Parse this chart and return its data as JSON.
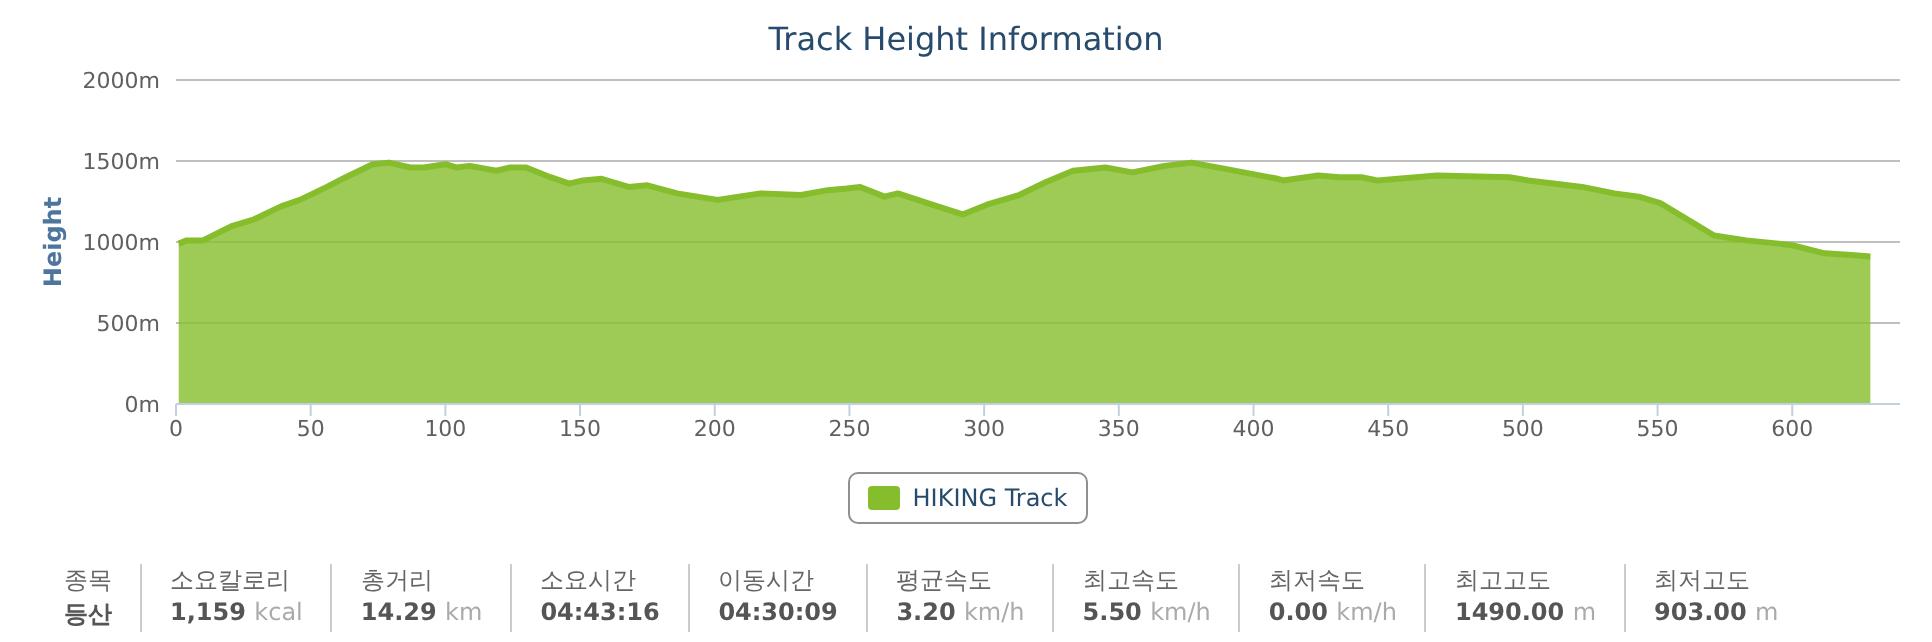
{
  "chart_data": {
    "type": "area",
    "title": "Track Height Information",
    "ylabel": "Height",
    "x": [
      1,
      4,
      10,
      21,
      29,
      39,
      46,
      56,
      63,
      73,
      79,
      87,
      92,
      100,
      104,
      109,
      119,
      124,
      130,
      139,
      146,
      151,
      158,
      168,
      175,
      186,
      201,
      217,
      232,
      242,
      249,
      254,
      263,
      268,
      279,
      292,
      301,
      313,
      323,
      333,
      345,
      355,
      367,
      377,
      390,
      409,
      411,
      424,
      432,
      440,
      446,
      468,
      495,
      502,
      522,
      534,
      543,
      551,
      571,
      583,
      595,
      600,
      612,
      622,
      629
    ],
    "series": [
      {
        "name": "HIKING Track",
        "color": "#86bd2c",
        "values": [
          990,
          1010,
          1010,
          1100,
          1140,
          1220,
          1260,
          1340,
          1400,
          1480,
          1490,
          1460,
          1460,
          1480,
          1460,
          1470,
          1440,
          1460,
          1460,
          1400,
          1360,
          1380,
          1390,
          1340,
          1350,
          1300,
          1260,
          1300,
          1290,
          1320,
          1330,
          1340,
          1280,
          1300,
          1240,
          1170,
          1230,
          1290,
          1370,
          1440,
          1460,
          1430,
          1470,
          1490,
          1450,
          1390,
          1380,
          1410,
          1400,
          1400,
          1380,
          1410,
          1400,
          1380,
          1340,
          1300,
          1280,
          1240,
          1040,
          1010,
          990,
          980,
          930,
          920,
          910
        ]
      }
    ],
    "xlim": [
      0,
      640
    ],
    "xticks": [
      0,
      50,
      100,
      150,
      200,
      250,
      300,
      350,
      400,
      450,
      500,
      550,
      600
    ],
    "ylim": [
      0,
      2000
    ],
    "yticks": [
      {
        "value": 0,
        "label": "0m"
      },
      {
        "value": 500,
        "label": "500m"
      },
      {
        "value": 1000,
        "label": "1000m"
      },
      {
        "value": 1500,
        "label": "1500m"
      },
      {
        "value": 2000,
        "label": "2000m"
      }
    ],
    "grid": "y",
    "legend": "bottom",
    "marker": "none",
    "annotations": [
      "종목",
      "등산",
      "소요칼로리",
      "1,159 kcal",
      "총거리",
      "14.29 km",
      "소요시간",
      "04:43:16",
      "이동시간",
      "04:30:09",
      "평균속도",
      "3.20 km/h",
      "최고속도",
      "5.50 km/h",
      "최저속도",
      "0.00 km/h",
      "최고고도",
      "1490.00 m",
      "최저고도",
      "903.00 m"
    ]
  }
}
